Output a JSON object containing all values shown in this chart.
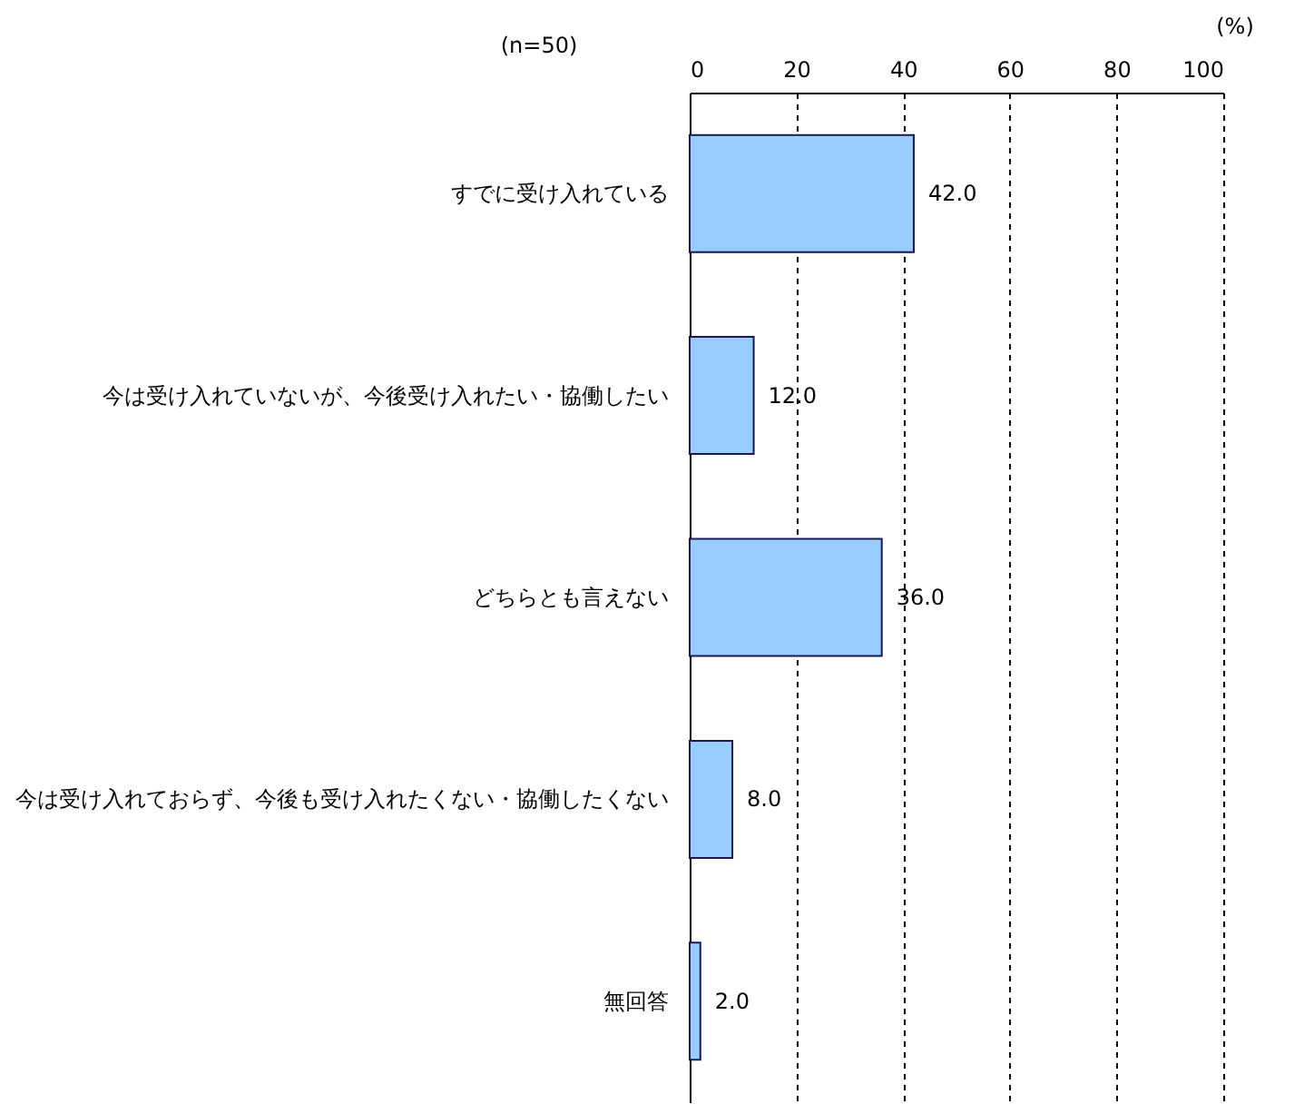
{
  "chart_data": {
    "type": "bar",
    "orientation": "horizontal",
    "categories": [
      "すでに受け入れている",
      "今は受け入れていないが、今後受け入れたい・協働したい",
      "どちらとも言えない",
      "今は受け入れておらず、今後も受け入れたくない・協働したくない",
      "無回答"
    ],
    "values": [
      42.0,
      12.0,
      36.0,
      8.0,
      2.0
    ],
    "value_labels": [
      "42.0",
      "12.0",
      "36.0",
      "8.0",
      "2.0"
    ],
    "color": "#99ccff",
    "xlim": [
      0,
      100
    ],
    "xticks": [
      0,
      20,
      40,
      60,
      80,
      100
    ],
    "xlabel": "(%)",
    "grid": "x",
    "annotations": [
      "(n=50)"
    ]
  }
}
